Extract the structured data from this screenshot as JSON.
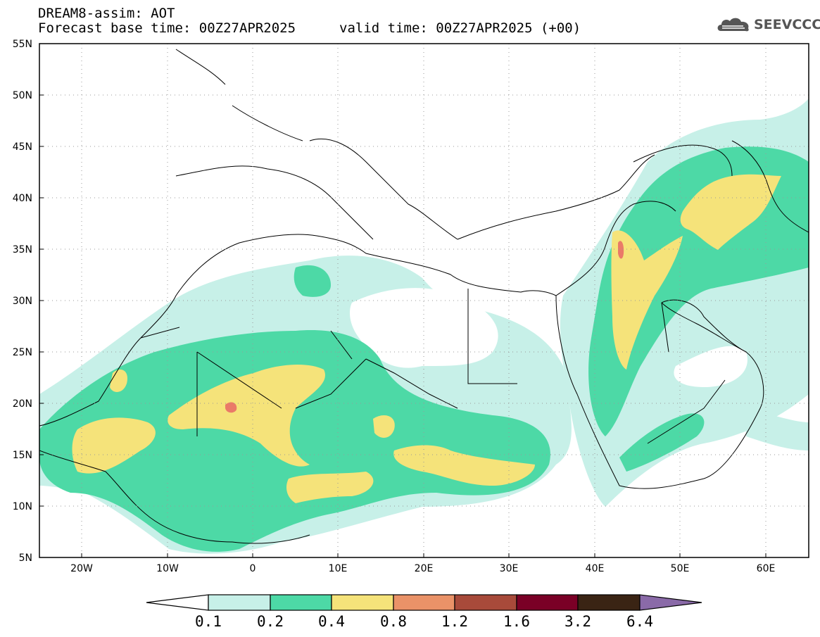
{
  "header": {
    "title": "DREAM8-assim: AOT",
    "base_time": "Forecast base time: 00Z27APR2025",
    "valid_time": "valid time: 00Z27APR2025 (+00)",
    "logo_text": "SEEVCCC",
    "logo_icon": "cloud-icon"
  },
  "map": {
    "lon_range": [
      -25,
      65
    ],
    "lat_range": [
      5,
      55
    ],
    "grid": "dotted",
    "lon_ticks": [
      "20W",
      "10W",
      "0",
      "10E",
      "20E",
      "30E",
      "40E",
      "50E",
      "60E"
    ],
    "lat_ticks": [
      "5N",
      "10N",
      "15N",
      "20N",
      "25N",
      "30N",
      "35N",
      "40N",
      "45N",
      "50N",
      "55N"
    ],
    "variable": "AOT"
  },
  "colorbar": {
    "labels": [
      "0.1",
      "0.2",
      "0.4",
      "0.8",
      "1.2",
      "1.6",
      "3.2",
      "6.4"
    ],
    "colors": [
      "#c7f0e8",
      "#4dd9a6",
      "#f5e37a",
      "#ea9268",
      "#a84a3a",
      "#7a0026",
      "#3a2414",
      "#8a6aa8"
    ],
    "under_color": "#ffffff"
  }
}
